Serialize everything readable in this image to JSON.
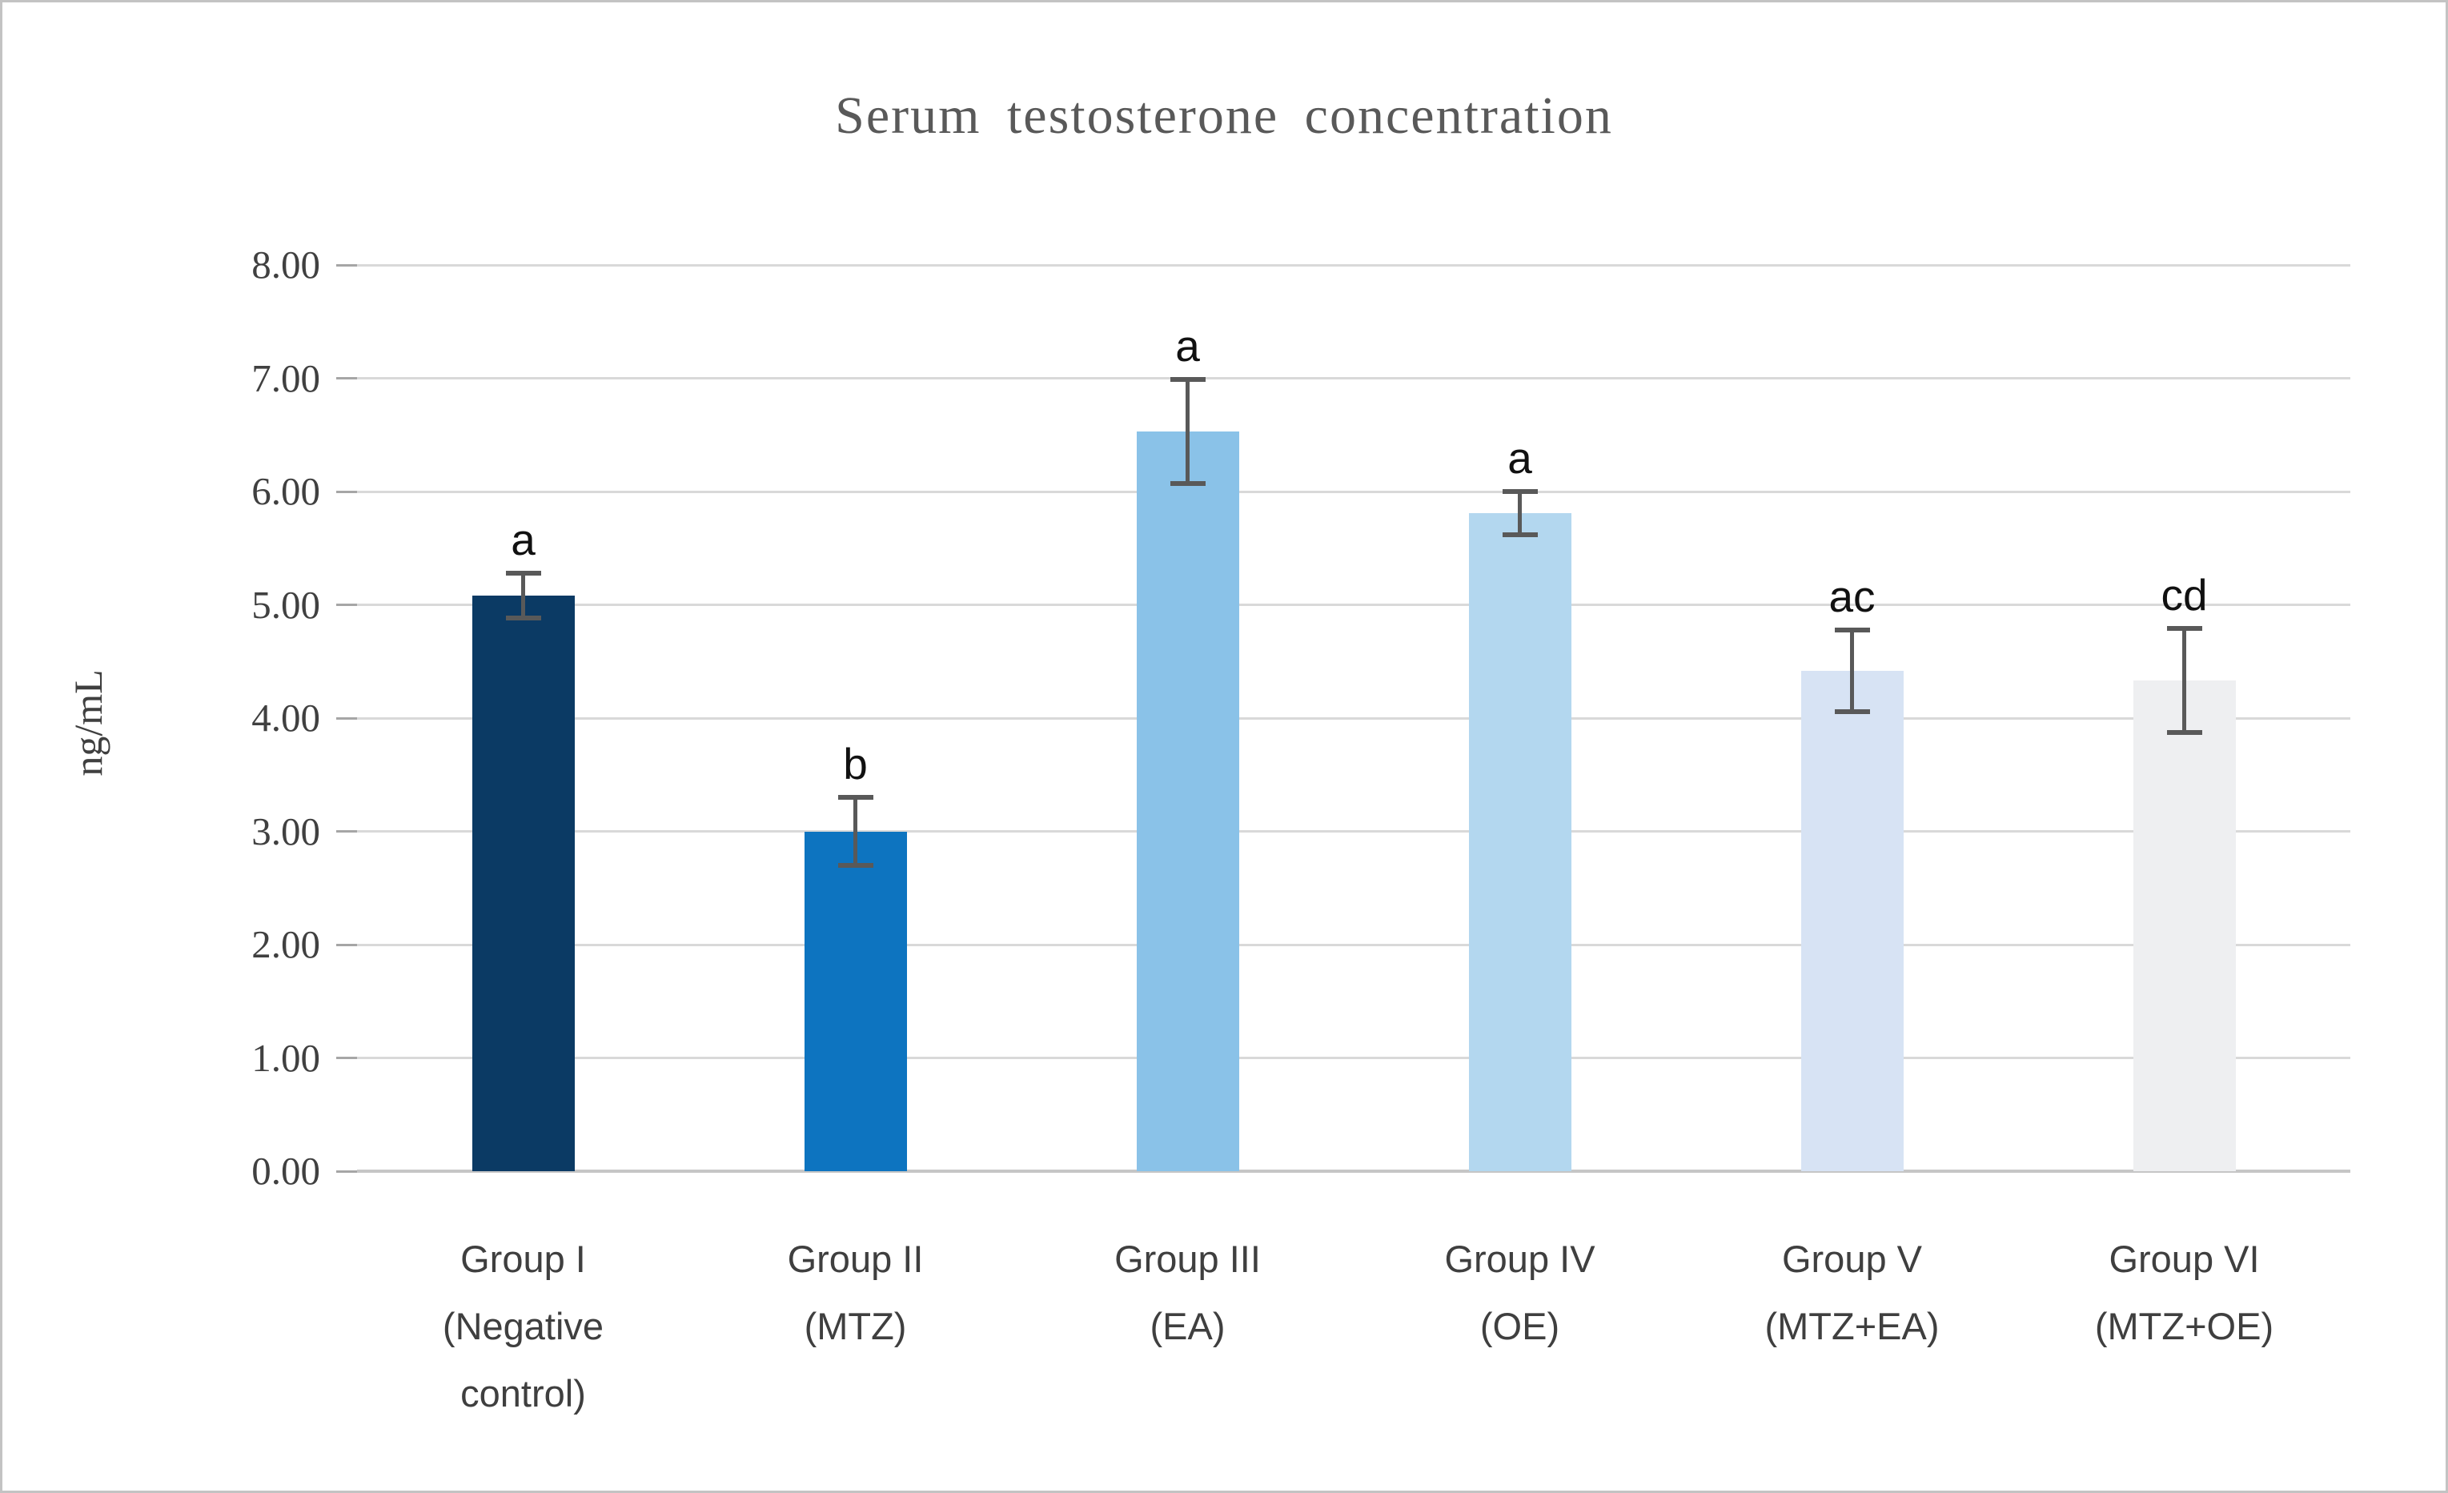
{
  "figure": {
    "background": "#ffffff",
    "border_color": "#c3c3c3"
  },
  "chart_data": {
    "type": "bar",
    "title": "Serum testosterone concentration",
    "xlabel": "",
    "ylabel": "ng/mL",
    "ylim": [
      0,
      8
    ],
    "ytick_step": 1.0,
    "ytick_labels": [
      "0.00",
      "1.00",
      "2.00",
      "3.00",
      "4.00",
      "5.00",
      "6.00",
      "7.00",
      "8.00"
    ],
    "grid": "horizontal",
    "legend": "none",
    "categories": [
      [
        "Group I",
        "(Negative",
        "control)"
      ],
      [
        "Group II",
        "(MTZ)"
      ],
      [
        "Group III",
        "(EA)"
      ],
      [
        "Group IV",
        "(OE)"
      ],
      [
        "Group V",
        "(MTZ+EA)"
      ],
      [
        "Group VI",
        "(MTZ+OE)"
      ]
    ],
    "series": [
      {
        "values": [
          5.08,
          3.0,
          6.53,
          5.81,
          4.42,
          4.33
        ],
        "error_bars": [
          0.2,
          0.3,
          0.46,
          0.19,
          0.36,
          0.46
        ],
        "significance_labels": [
          "a",
          "b",
          "a",
          "a",
          "ac",
          "cd"
        ],
        "bar_colors": [
          "#0b3a64",
          "#0d74c0",
          "#8ac2e8",
          "#b3d7ef",
          "#d7e3f4",
          "#eeeff1"
        ]
      }
    ],
    "colors": {
      "title_text": "#595959",
      "y_axis_text": "#404040",
      "category_text": "#3f3f3f",
      "significance_text": "#111111",
      "gridline": "#d9d9d9",
      "axis_line": "#c6c6c6",
      "tick_mark": "#a6a6a6",
      "error_bar": "#595959"
    }
  }
}
